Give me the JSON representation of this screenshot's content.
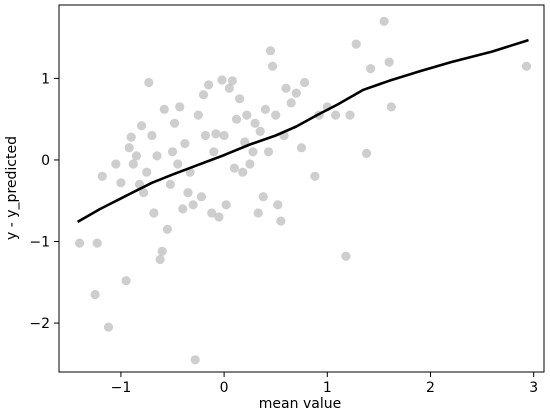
{
  "chart_data": {
    "type": "scatter",
    "xlabel": "mean value",
    "ylabel": "y - y_predicted",
    "xlim": [
      -1.6,
      3.1
    ],
    "ylim": [
      -2.6,
      1.9
    ],
    "xticks": [
      -1,
      0,
      1,
      2,
      3
    ],
    "yticks": [
      -2,
      -1,
      0,
      1
    ],
    "xtick_labels": [
      "−1",
      "0",
      "1",
      "2",
      "3"
    ],
    "ytick_labels": [
      "−2",
      "−1",
      "0",
      "1"
    ],
    "grid": false,
    "point_color": "#bdbdbd",
    "line_color": "#000000",
    "points": [
      [
        -1.4,
        -1.02
      ],
      [
        -1.23,
        -1.02
      ],
      [
        -1.25,
        -1.65
      ],
      [
        -1.12,
        -2.05
      ],
      [
        -1.18,
        -0.2
      ],
      [
        -1.05,
        -0.05
      ],
      [
        -1.0,
        -0.28
      ],
      [
        -0.95,
        -1.48
      ],
      [
        -0.92,
        0.15
      ],
      [
        -0.9,
        0.28
      ],
      [
        -0.88,
        -0.05
      ],
      [
        -0.85,
        0.05
      ],
      [
        -0.82,
        -0.3
      ],
      [
        -0.8,
        0.42
      ],
      [
        -0.78,
        -0.4
      ],
      [
        -0.75,
        -0.15
      ],
      [
        -0.73,
        0.95
      ],
      [
        -0.7,
        0.3
      ],
      [
        -0.68,
        -0.65
      ],
      [
        -0.65,
        0.05
      ],
      [
        -0.62,
        -1.22
      ],
      [
        -0.6,
        -1.12
      ],
      [
        -0.58,
        0.62
      ],
      [
        -0.55,
        -0.85
      ],
      [
        -0.52,
        -0.3
      ],
      [
        -0.5,
        0.1
      ],
      [
        -0.48,
        0.45
      ],
      [
        -0.45,
        -0.05
      ],
      [
        -0.43,
        0.65
      ],
      [
        -0.4,
        -0.6
      ],
      [
        -0.38,
        0.2
      ],
      [
        -0.35,
        -0.4
      ],
      [
        -0.33,
        -0.15
      ],
      [
        -0.3,
        -0.55
      ],
      [
        -0.28,
        -2.45
      ],
      [
        -0.25,
        0.55
      ],
      [
        -0.22,
        -0.45
      ],
      [
        -0.2,
        0.8
      ],
      [
        -0.18,
        0.3
      ],
      [
        -0.15,
        0.92
      ],
      [
        -0.12,
        -0.65
      ],
      [
        -0.1,
        0.1
      ],
      [
        -0.08,
        0.32
      ],
      [
        -0.05,
        -0.7
      ],
      [
        -0.02,
        0.98
      ],
      [
        0.0,
        0.3
      ],
      [
        0.02,
        -0.55
      ],
      [
        0.05,
        0.88
      ],
      [
        0.08,
        0.97
      ],
      [
        0.1,
        -0.1
      ],
      [
        0.12,
        0.5
      ],
      [
        0.15,
        0.75
      ],
      [
        0.18,
        -0.15
      ],
      [
        0.2,
        0.22
      ],
      [
        0.22,
        0.55
      ],
      [
        0.25,
        -0.05
      ],
      [
        0.28,
        0.1
      ],
      [
        0.3,
        0.45
      ],
      [
        0.33,
        -0.65
      ],
      [
        0.35,
        0.35
      ],
      [
        0.38,
        -0.45
      ],
      [
        0.4,
        0.62
      ],
      [
        0.43,
        0.1
      ],
      [
        0.45,
        1.34
      ],
      [
        0.47,
        1.15
      ],
      [
        0.5,
        0.55
      ],
      [
        0.52,
        -0.55
      ],
      [
        0.55,
        -0.75
      ],
      [
        0.58,
        0.3
      ],
      [
        0.6,
        0.88
      ],
      [
        0.65,
        0.7
      ],
      [
        0.7,
        0.82
      ],
      [
        0.75,
        0.15
      ],
      [
        0.78,
        0.95
      ],
      [
        0.88,
        -0.2
      ],
      [
        0.92,
        0.55
      ],
      [
        1.0,
        0.65
      ],
      [
        1.08,
        0.55
      ],
      [
        1.18,
        -1.18
      ],
      [
        1.22,
        0.55
      ],
      [
        1.28,
        1.42
      ],
      [
        1.38,
        0.08
      ],
      [
        1.42,
        1.12
      ],
      [
        1.55,
        1.7
      ],
      [
        1.6,
        1.2
      ],
      [
        1.62,
        0.65
      ],
      [
        2.93,
        1.15
      ]
    ],
    "trend_line": [
      [
        -1.42,
        -0.76
      ],
      [
        -1.2,
        -0.6
      ],
      [
        -0.95,
        -0.44
      ],
      [
        -0.7,
        -0.28
      ],
      [
        -0.5,
        -0.18
      ],
      [
        -0.25,
        -0.06
      ],
      [
        0.0,
        0.06
      ],
      [
        0.25,
        0.19
      ],
      [
        0.5,
        0.3
      ],
      [
        0.7,
        0.41
      ],
      [
        0.9,
        0.55
      ],
      [
        1.1,
        0.68
      ],
      [
        1.35,
        0.86
      ],
      [
        1.6,
        0.97
      ],
      [
        1.9,
        1.09
      ],
      [
        2.2,
        1.2
      ],
      [
        2.6,
        1.33
      ],
      [
        2.95,
        1.47
      ]
    ]
  }
}
